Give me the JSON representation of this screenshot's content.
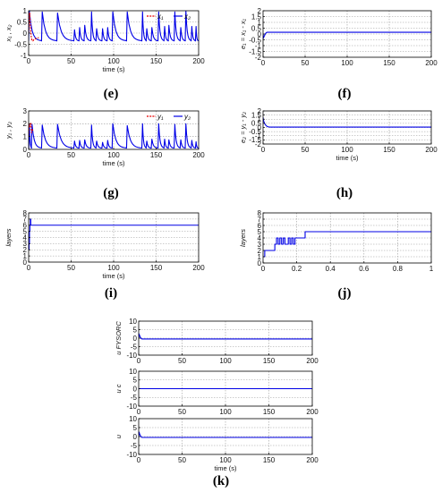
{
  "figure": {
    "labels": {
      "e": "(e)",
      "f": "(f)",
      "g": "(g)",
      "h": "(h)",
      "i": "(i)",
      "j": "(j)",
      "k": "(k)"
    }
  },
  "colors": {
    "blue": "#0000e6",
    "red": "#e60000",
    "grid": "#9a9a9a",
    "axis": "#000000"
  },
  "chart_data": [
    {
      "id": "e",
      "type": "line",
      "xlabel": "time (s)",
      "ylabel": "x₁ , x₂",
      "xlim": [
        0,
        200
      ],
      "ylim": [
        -1,
        1
      ],
      "xticks": [
        0,
        50,
        100,
        150,
        200
      ],
      "yticks": [
        -1,
        -0.5,
        0,
        0.5,
        1
      ],
      "grid": true,
      "legend": "top-right",
      "series": [
        {
          "name": "x₁",
          "color": "#e60000",
          "style": "dashed",
          "x": [
            0,
            0.6,
            1.2,
            2,
            3,
            4,
            5,
            6,
            8,
            10,
            12
          ],
          "y": [
            0.0,
            0.55,
            0.9,
            0.35,
            -0.15,
            -0.32,
            -0.35,
            -0.3,
            -0.25,
            -0.22,
            -0.2
          ]
        },
        {
          "name": "x₂",
          "color": "#0000e6",
          "style": "solid",
          "peaks": [
            0.8,
            16,
            34,
            54,
            60,
            66,
            74,
            80,
            87,
            93,
            99,
            116,
            134,
            139,
            145,
            153,
            160,
            165,
            172,
            179,
            185,
            192,
            197
          ],
          "peak_heights": [
            1.0,
            0.95,
            0.9,
            0.15,
            0.25,
            0.35,
            0.95,
            0.2,
            0.2,
            0.25,
            0.95,
            0.95,
            0.95,
            0.2,
            0.25,
            0.95,
            0.3,
            0.35,
            0.95,
            0.25,
            1.0,
            0.3,
            0.3
          ],
          "base": -0.35
        }
      ]
    },
    {
      "id": "f",
      "type": "line",
      "xlabel": "",
      "ylabel": "e₁ = x₁ - x₁",
      "xlim": [
        0,
        200
      ],
      "ylim": [
        -2,
        2
      ],
      "xticks": [
        0,
        50,
        100,
        150,
        200
      ],
      "yticks": [
        -2,
        -1.5,
        -1,
        -0.5,
        0,
        0.5,
        1,
        1.5,
        2
      ],
      "grid": true,
      "series": [
        {
          "name": "",
          "color": "#0000e6",
          "x": [
            0,
            0.5,
            1,
            2,
            3,
            4,
            5,
            200
          ],
          "y": [
            0,
            -0.35,
            -0.25,
            -0.1,
            0.05,
            0.12,
            0.15,
            0.15
          ]
        }
      ]
    },
    {
      "id": "g",
      "type": "line",
      "xlabel": "time (s)",
      "ylabel": "y₁ , y₂",
      "xlim": [
        0,
        200
      ],
      "ylim": [
        0,
        3
      ],
      "xticks": [
        0,
        50,
        100,
        150,
        200
      ],
      "yticks": [
        0,
        1,
        2,
        3
      ],
      "grid": true,
      "legend": "top-right",
      "series": [
        {
          "name": "y₁",
          "color": "#e60000",
          "style": "dashed",
          "x": [
            0,
            0.6,
            1.5,
            2.5,
            3.5,
            5
          ],
          "y": [
            1.0,
            2.0,
            1.8,
            2.1,
            1.3,
            1.6
          ]
        },
        {
          "name": "y₂",
          "color": "#0000e6",
          "style": "solid",
          "peaks": [
            1,
            4,
            16,
            34,
            54,
            60,
            66,
            74,
            80,
            87,
            93,
            99,
            116,
            134,
            139,
            145,
            153,
            160,
            165,
            172,
            179,
            185,
            192,
            197
          ],
          "peak_heights": [
            1.9,
            1.95,
            1.9,
            1.95,
            0.65,
            0.7,
            0.75,
            1.9,
            0.65,
            0.55,
            0.7,
            2.0,
            1.85,
            2.0,
            0.65,
            0.8,
            2.0,
            0.8,
            0.75,
            1.95,
            0.75,
            2.0,
            0.7,
            0.6
          ],
          "base": 0.1
        }
      ]
    },
    {
      "id": "h",
      "type": "line",
      "xlabel": "time (s)",
      "ylabel": "e₂ = y₁ - y₂",
      "xlim": [
        0,
        200
      ],
      "ylim": [
        -2,
        2
      ],
      "xticks": [
        0,
        50,
        100,
        150,
        200
      ],
      "yticks": [
        -2,
        -1.5,
        -1,
        -0.5,
        0,
        0.5,
        1,
        1.5,
        2
      ],
      "grid": true,
      "series": [
        {
          "name": "",
          "color": "#0000e6",
          "x": [
            0,
            0.4,
            1,
            2,
            3,
            4,
            5,
            6,
            8,
            200
          ],
          "y": [
            1.2,
            0.95,
            0.7,
            0.45,
            0.3,
            0.2,
            0.12,
            0.08,
            0.05,
            0.05
          ]
        }
      ]
    },
    {
      "id": "i",
      "type": "line",
      "xlabel": "time (s)",
      "ylabel": "layers",
      "xlim": [
        0,
        200
      ],
      "ylim": [
        0,
        8
      ],
      "xticks": [
        0,
        50,
        100,
        150,
        200
      ],
      "yticks": [
        0,
        1,
        2,
        3,
        4,
        5,
        6,
        7,
        8
      ],
      "grid": true,
      "series": [
        {
          "name": "",
          "color": "#0000e6",
          "step": true,
          "x": [
            0,
            0.5,
            1,
            1.5,
            2,
            2.5,
            3,
            200
          ],
          "y": [
            2,
            3,
            5,
            6,
            7,
            6,
            6,
            6
          ]
        }
      ]
    },
    {
      "id": "j",
      "type": "line",
      "xlabel": "",
      "ylabel": "layers",
      "xlim": [
        0,
        1
      ],
      "ylim": [
        0,
        8
      ],
      "xticks": [
        0,
        0.2,
        0.4,
        0.6,
        0.8,
        1
      ],
      "yticks": [
        0,
        1,
        2,
        3,
        4,
        5,
        6,
        7,
        8
      ],
      "grid": true,
      "series": [
        {
          "name": "",
          "color": "#0000e6",
          "step": true,
          "x": [
            0,
            0.01,
            0.07,
            0.08,
            0.09,
            0.1,
            0.11,
            0.12,
            0.13,
            0.14,
            0.15,
            0.16,
            0.17,
            0.18,
            0.19,
            0.2,
            0.25,
            1.0
          ],
          "y": [
            1,
            2,
            3,
            4,
            3,
            4,
            3,
            4,
            3,
            3,
            4,
            3,
            4,
            3,
            4,
            4,
            5,
            5
          ]
        }
      ]
    },
    {
      "id": "k1",
      "type": "line",
      "xlabel": "",
      "ylabel": "u FYSORC",
      "xlim": [
        0,
        200
      ],
      "ylim": [
        -10,
        10
      ],
      "xticks": [
        0,
        50,
        100,
        150,
        200
      ],
      "yticks": [
        -10,
        -5,
        0,
        5,
        10
      ],
      "grid": true,
      "series": [
        {
          "name": "",
          "color": "#0000e6",
          "x": [
            0,
            0.5,
            1,
            2,
            3,
            4,
            5,
            200
          ],
          "y": [
            0,
            2.5,
            1.5,
            0.5,
            -0.3,
            -0.5,
            -0.5,
            -0.5
          ]
        }
      ]
    },
    {
      "id": "k2",
      "type": "line",
      "xlabel": "",
      "ylabel": "u c",
      "xlim": [
        0,
        200
      ],
      "ylim": [
        -10,
        10
      ],
      "xticks": [
        0,
        50,
        100,
        150,
        200
      ],
      "yticks": [
        -10,
        -5,
        0,
        5,
        10
      ],
      "grid": true,
      "series": [
        {
          "name": "",
          "color": "#0000e6",
          "x": [
            0,
            200
          ],
          "y": [
            0,
            0
          ]
        }
      ]
    },
    {
      "id": "k3",
      "type": "line",
      "xlabel": "time (s)",
      "ylabel": "u",
      "xlim": [
        0,
        200
      ],
      "ylim": [
        -10,
        10
      ],
      "xticks": [
        0,
        50,
        100,
        150,
        200
      ],
      "yticks": [
        -10,
        -5,
        0,
        5,
        10
      ],
      "grid": true,
      "series": [
        {
          "name": "",
          "color": "#0000e6",
          "x": [
            0,
            0.5,
            1,
            2,
            3,
            4,
            5,
            200
          ],
          "y": [
            0,
            2.5,
            1.5,
            0.5,
            -0.3,
            -0.5,
            -0.5,
            -0.5
          ]
        }
      ]
    }
  ]
}
